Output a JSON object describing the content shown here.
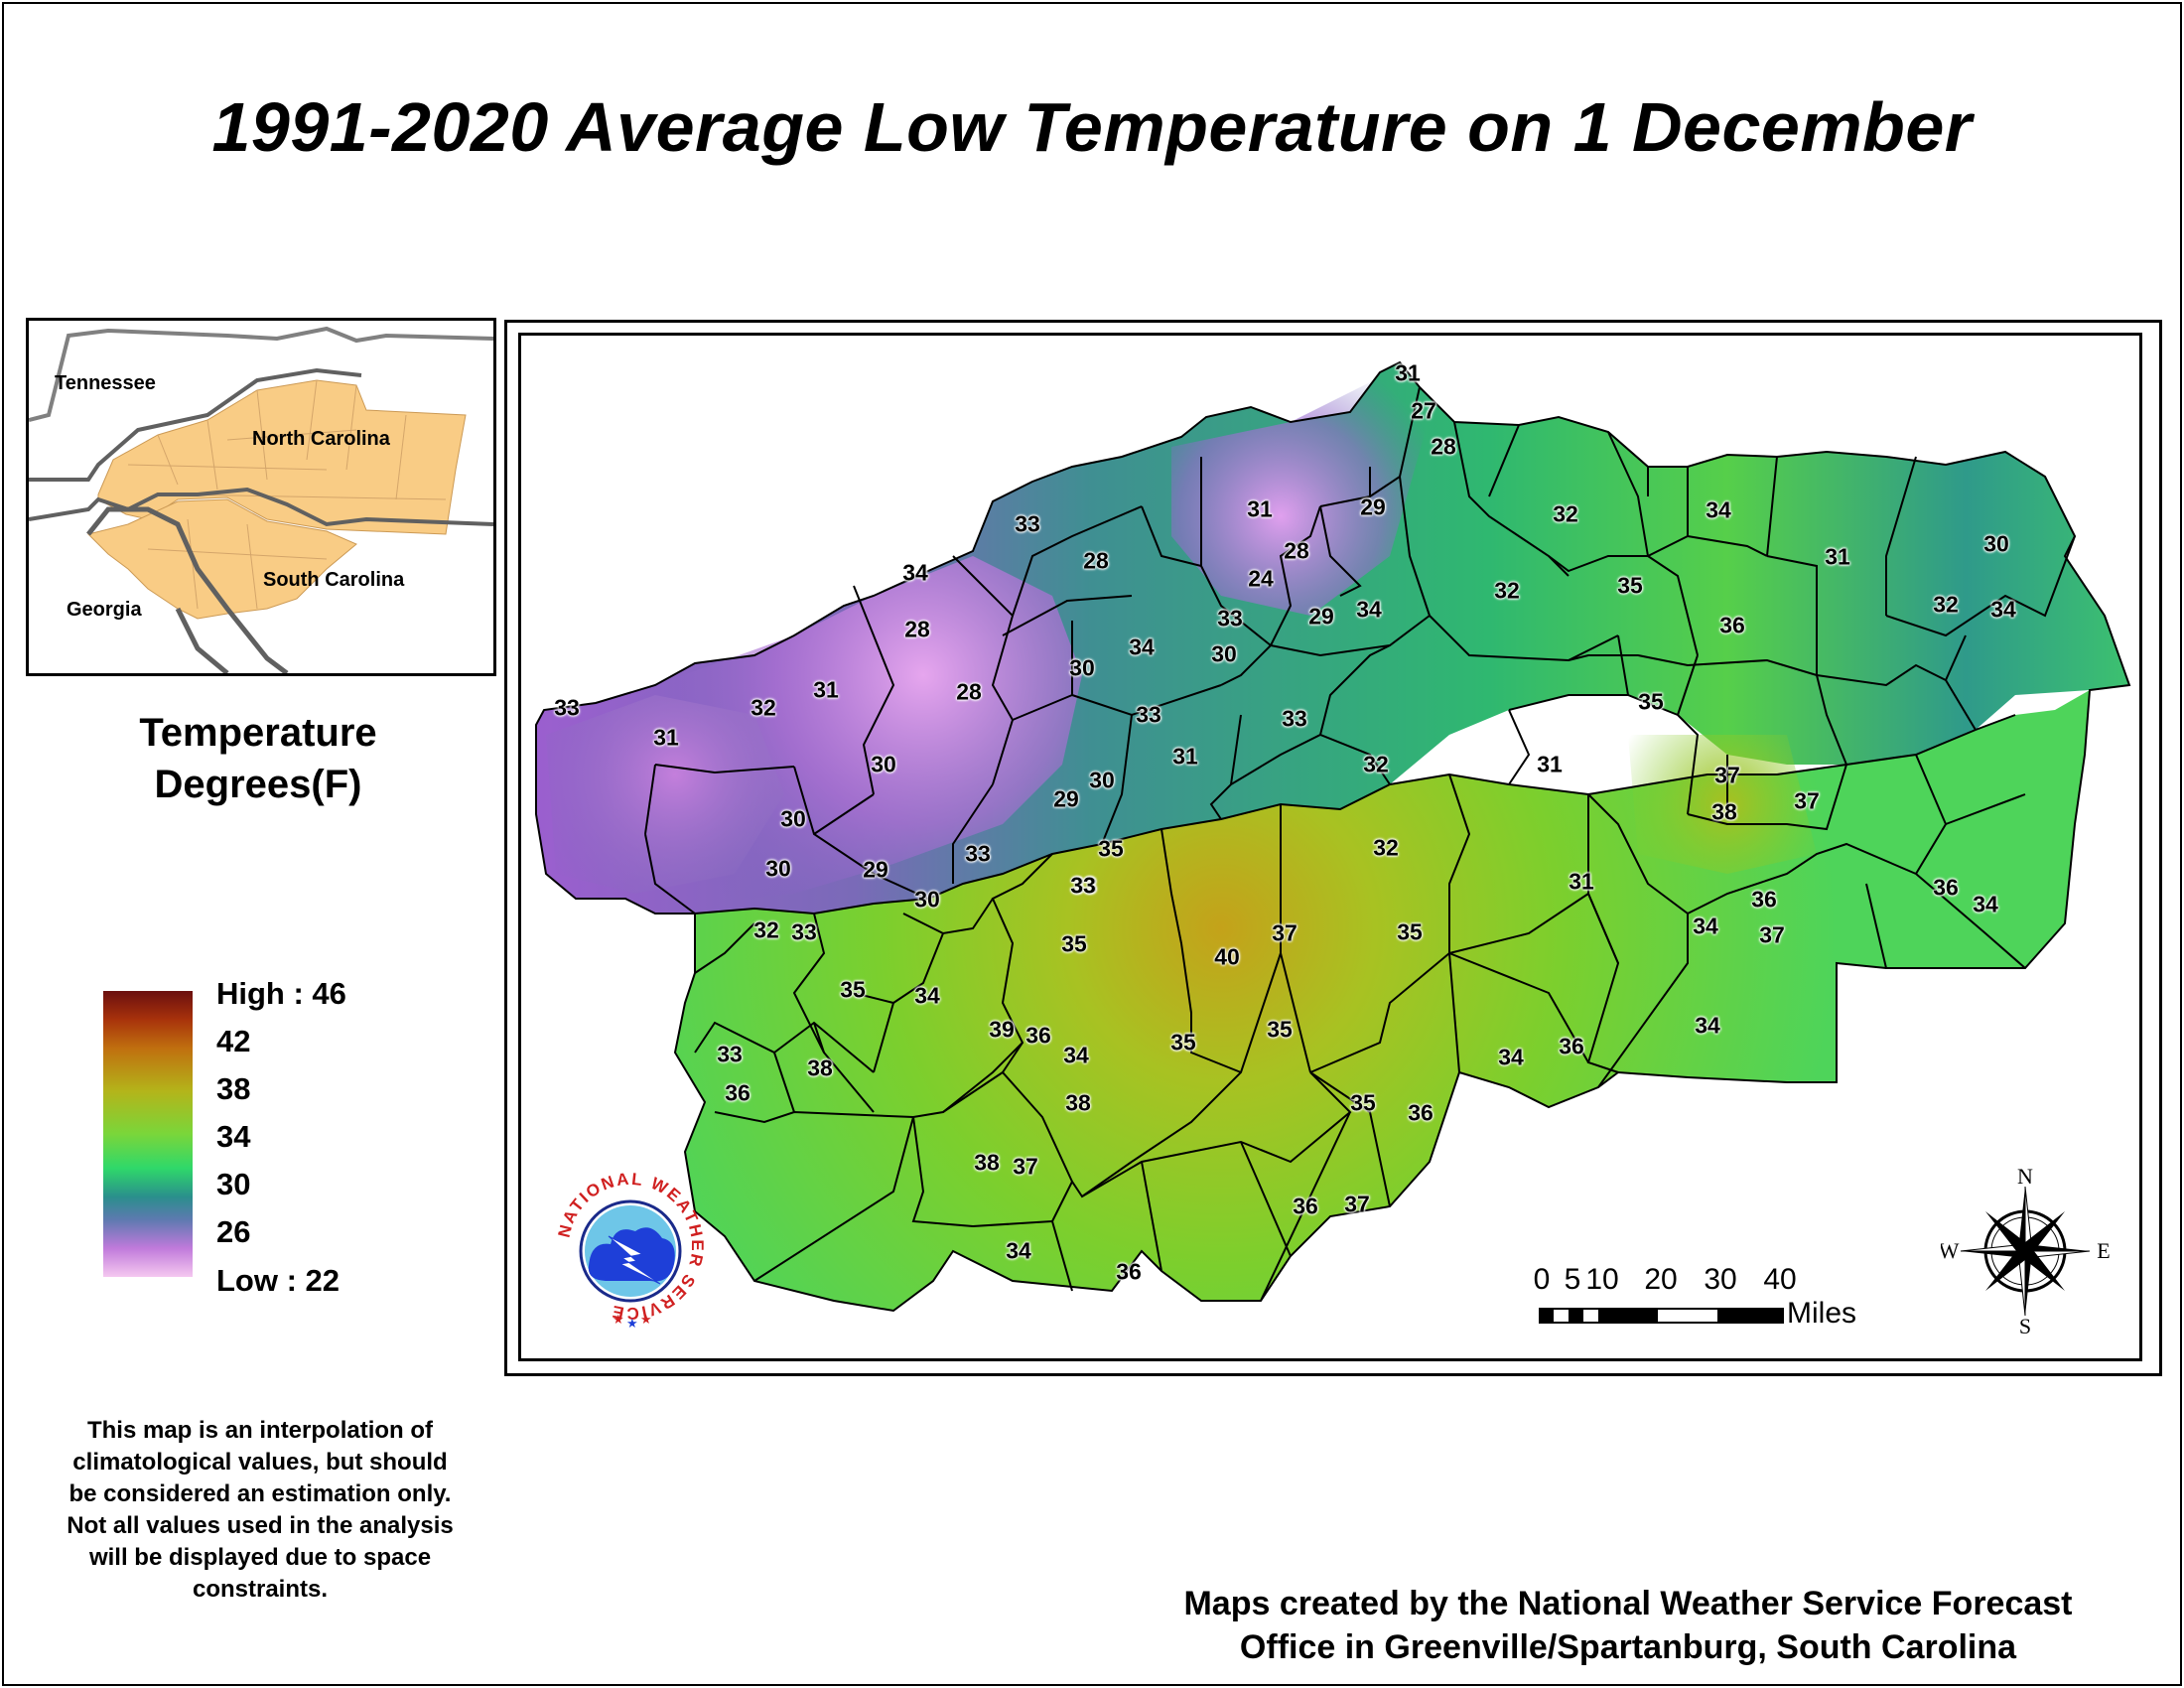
{
  "title": "1991-2020 Average Low Temperature on 1 December",
  "inset": {
    "labels": {
      "tennessee": "Tennessee",
      "north_carolina": "North Carolina",
      "south_carolina": "South Carolina",
      "georgia": "Georgia"
    },
    "fill_color": "#f9cc85"
  },
  "legend": {
    "title_line1": "Temperature",
    "title_line2": "Degrees(F)",
    "high_label": "High : 46",
    "ticks": [
      "42",
      "38",
      "34",
      "30",
      "26"
    ],
    "low_label": "Low : 22"
  },
  "disclaimer": [
    "This map is an interpolation of",
    "climatological values, but should",
    "be considered an estimation only.",
    "Not all values used in the analysis",
    "will be displayed due to space",
    "constraints."
  ],
  "credit": [
    "Maps created by the National Weather Service Forecast",
    "Office in Greenville/Spartanburg, South Carolina"
  ],
  "logo_text": "NATIONAL WEATHER SERVICE",
  "scale_bar": {
    "ticks": [
      "0",
      "5",
      "10",
      "20",
      "30",
      "40"
    ],
    "unit": "Miles"
  },
  "compass": {
    "n": "N",
    "s": "S",
    "e": "E",
    "w": "W"
  },
  "station_values": [
    "31",
    "27",
    "28",
    "29",
    "33",
    "28",
    "31",
    "28",
    "24",
    "33",
    "30",
    "29",
    "34",
    "32",
    "32",
    "35",
    "34",
    "36",
    "31",
    "32",
    "34",
    "30",
    "34",
    "28",
    "28",
    "30",
    "34",
    "33",
    "31",
    "33",
    "30",
    "29",
    "32",
    "31",
    "33",
    "31",
    "32",
    "31",
    "30",
    "30",
    "30",
    "29",
    "33",
    "35",
    "33",
    "32",
    "33",
    "30",
    "35",
    "34",
    "33",
    "35",
    "37",
    "40",
    "32",
    "35",
    "31",
    "31",
    "35",
    "37",
    "38",
    "36",
    "37",
    "37",
    "36",
    "34",
    "34",
    "33",
    "36",
    "38",
    "39",
    "36",
    "34",
    "38",
    "35",
    "35",
    "35",
    "36",
    "34",
    "36",
    "34",
    "38",
    "37",
    "34",
    "36",
    "36",
    "37"
  ]
}
